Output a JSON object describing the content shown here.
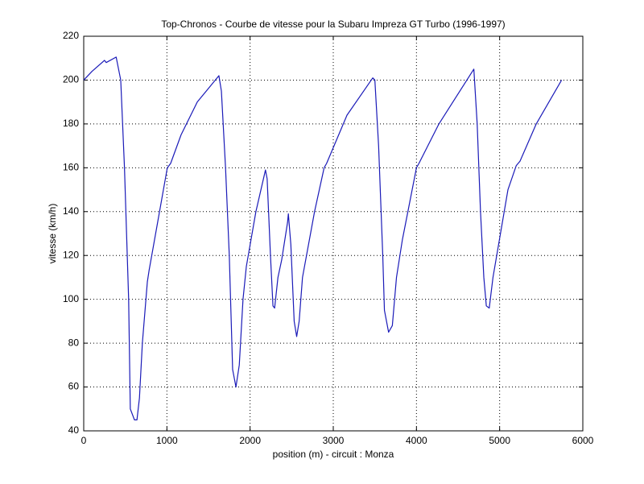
{
  "chart_data": {
    "type": "line",
    "title": "Top-Chronos - Courbe de vitesse pour la Subaru Impreza GT Turbo (1996-1997)",
    "x_label": "position (m) - circuit : Monza",
    "y_label": "vitesse (km/h)",
    "x": [
      0,
      100,
      250,
      270,
      390,
      445,
      490,
      540,
      560,
      610,
      640,
      670,
      705,
      765,
      785,
      1005,
      1045,
      1170,
      1365,
      1625,
      1655,
      1705,
      1750,
      1790,
      1830,
      1870,
      1915,
      1955,
      2070,
      2185,
      2205,
      2245,
      2275,
      2295,
      2335,
      2380,
      2450,
      2460,
      2490,
      2530,
      2560,
      2590,
      2630,
      2775,
      2890,
      2920,
      3165,
      3475,
      3500,
      3545,
      3595,
      3615,
      3665,
      3710,
      3760,
      3830,
      4000,
      4030,
      4270,
      4690,
      4730,
      4770,
      4810,
      4840,
      4875,
      4920,
      5100,
      5200,
      5245,
      5440,
      5745
    ],
    "values": [
      200,
      204,
      209,
      208,
      210.5,
      200,
      160,
      100,
      50,
      45,
      45,
      55,
      80,
      108,
      113,
      160,
      162,
      175,
      190,
      202,
      195,
      160,
      120,
      68,
      60,
      70,
      100,
      115,
      140,
      159,
      155,
      120,
      97,
      96,
      110,
      118,
      135,
      139,
      125,
      90,
      83,
      90,
      110,
      140,
      160,
      162,
      184,
      201,
      200,
      170,
      120,
      95,
      85,
      88,
      110,
      127,
      160,
      162,
      180,
      205,
      180,
      140,
      110,
      97,
      96,
      110,
      150,
      161,
      163,
      180,
      200
    ],
    "color": "#1a1ab8",
    "xlim": [
      0,
      6000
    ],
    "xticks": [
      0,
      1000,
      2000,
      3000,
      4000,
      5000,
      6000
    ],
    "ylim": [
      40,
      220
    ],
    "yticks": [
      40,
      60,
      80,
      100,
      120,
      140,
      160,
      180,
      200,
      220
    ],
    "grid": true
  }
}
